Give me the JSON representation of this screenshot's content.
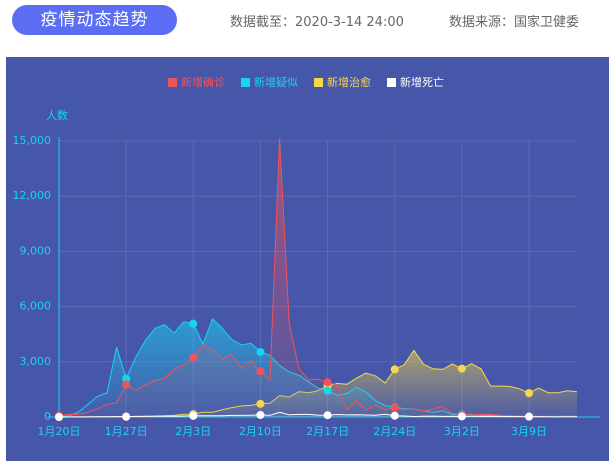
{
  "header": {
    "title": "疫情动态趋势",
    "date_text": "数据截至：2020-3-14 24:00",
    "source": "数据来源：国家卫健委"
  },
  "chart_data": {
    "type": "line",
    "y_label": "人数",
    "legend": "top",
    "grid": true,
    "categories": [
      "1月20日",
      null,
      null,
      null,
      null,
      null,
      null,
      "1月27日",
      null,
      null,
      null,
      null,
      null,
      null,
      "2月3日",
      null,
      null,
      null,
      null,
      null,
      null,
      "2月10日",
      null,
      null,
      null,
      null,
      null,
      null,
      "2月17日",
      null,
      null,
      null,
      null,
      null,
      null,
      "2月24日",
      null,
      null,
      null,
      null,
      null,
      null,
      "3月2日",
      null,
      null,
      null,
      null,
      null,
      null,
      "3月9日",
      null,
      null,
      null,
      null,
      null
    ],
    "ylim": [
      0,
      15000
    ],
    "yticks": [
      0,
      {
        "value": 3000,
        "label": "3,000"
      },
      {
        "value": 6000,
        "label": "6,000"
      },
      {
        "value": 9000,
        "label": "9,000"
      },
      {
        "value": 12000,
        "label": "12,000"
      },
      {
        "value": 15000,
        "label": "15,000"
      }
    ],
    "series": [
      {
        "name": "新增确诊",
        "color": "#f0535b",
        "values": [
          77,
          149,
          131,
          259,
          444,
          688,
          769,
          1771,
          1459,
          1737,
          1982,
          2102,
          2590,
          2829,
          3235,
          3887,
          3694,
          3143,
          3399,
          2656,
          3062,
          2478,
          2015,
          15152,
          5090,
          2641,
          2009,
          2048,
          1886,
          1749,
          394,
          889,
          397,
          648,
          409,
          508,
          406,
          433,
          327,
          427,
          573,
          202,
          125,
          119,
          139,
          143,
          99,
          44,
          40,
          19,
          24,
          15,
          8,
          11,
          20
        ]
      },
      {
        "name": "新增疑似",
        "color": "#19d4f0",
        "values": [
          27,
          60,
          257,
          680,
          1118,
          1309,
          3806,
          2077,
          3248,
          4148,
          4812,
          5019,
          4562,
          5173,
          5072,
          3971,
          5328,
          4833,
          4214,
          3916,
          4008,
          3536,
          3342,
          2807,
          2450,
          2277,
          1918,
          1563,
          1432,
          1185,
          1277,
          1614,
          1361,
          882,
          620,
          530,
          452,
          439,
          331,
          248,
          335,
          141,
          143,
          143,
          102,
          99,
          84,
          60,
          41,
          36,
          31,
          33,
          33,
          39,
          41
        ]
      },
      {
        "name": "新增治愈",
        "color": "#f5d94a",
        "values": [
          0,
          0,
          6,
          3,
          11,
          4,
          21,
          9,
          43,
          21,
          47,
          72,
          85,
          147,
          157,
          262,
          261,
          387,
          510,
          600,
          632,
          716,
          744,
          1171,
          1081,
          1373,
          1323,
          1425,
          1701,
          1824,
          1779,
          2109,
          2394,
          2231,
          1846,
          2589,
          2843,
          3622,
          2867,
          2622,
          2589,
          2888,
          2627,
          2899,
          2614,
          1681,
          1678,
          1661,
          1535,
          1297,
          1578,
          1318,
          1318,
          1427,
          1371
        ]
      },
      {
        "name": "新增死亡",
        "color": "#ffffff",
        "values": [
          0,
          3,
          8,
          8,
          16,
          15,
          24,
          26,
          26,
          38,
          43,
          46,
          45,
          57,
          64,
          65,
          73,
          73,
          86,
          89,
          97,
          108,
          97,
          254,
          121,
          143,
          142,
          105,
          98,
          136,
          114,
          118,
          109,
          97,
          150,
          71,
          52,
          29,
          44,
          47,
          35,
          42,
          31,
          38,
          31,
          30,
          28,
          27,
          22,
          17,
          22,
          11,
          7,
          13,
          10
        ]
      }
    ]
  }
}
